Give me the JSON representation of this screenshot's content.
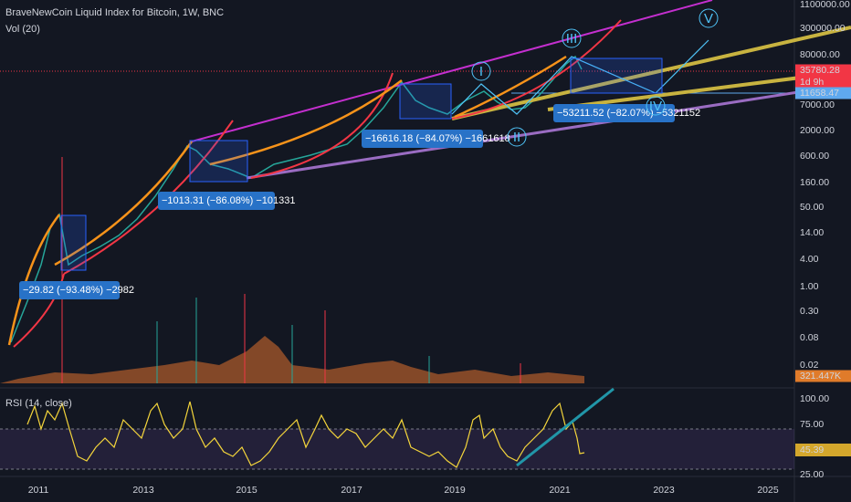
{
  "header": {
    "title": "BraveNewCoin Liquid Index for Bitcoin, 1W, BNC",
    "volume": "Vol (20)",
    "rsi": "RSI (14, close)"
  },
  "price_axis": [
    "1100000.00",
    "300000.00",
    "80000.00",
    "7000.00",
    "2000.00",
    "600.00",
    "160.00",
    "50.00",
    "14.00",
    "4.00",
    "1.00",
    "0.30",
    "0.08",
    "0.02"
  ],
  "badges": {
    "price": "35780.28",
    "countdown": "1d 9h",
    "level": "11658.47",
    "volume": "321.447K",
    "rsi": "45.39"
  },
  "rsi_axis": [
    "100.00",
    "75.00",
    "25.00"
  ],
  "time_axis": [
    "2011",
    "2013",
    "2015",
    "2017",
    "2019",
    "2021",
    "2023",
    "2025"
  ],
  "annotations": [
    "−29.82 (−93.48%) −2982",
    "−1013.31 (−86.08%) −101331",
    "−16616.18 (−84.07%) −1661618",
    "−53211.52 (−82.07%) −5321152"
  ],
  "waves": [
    "I",
    "II",
    "III",
    "IV",
    "V"
  ]
}
